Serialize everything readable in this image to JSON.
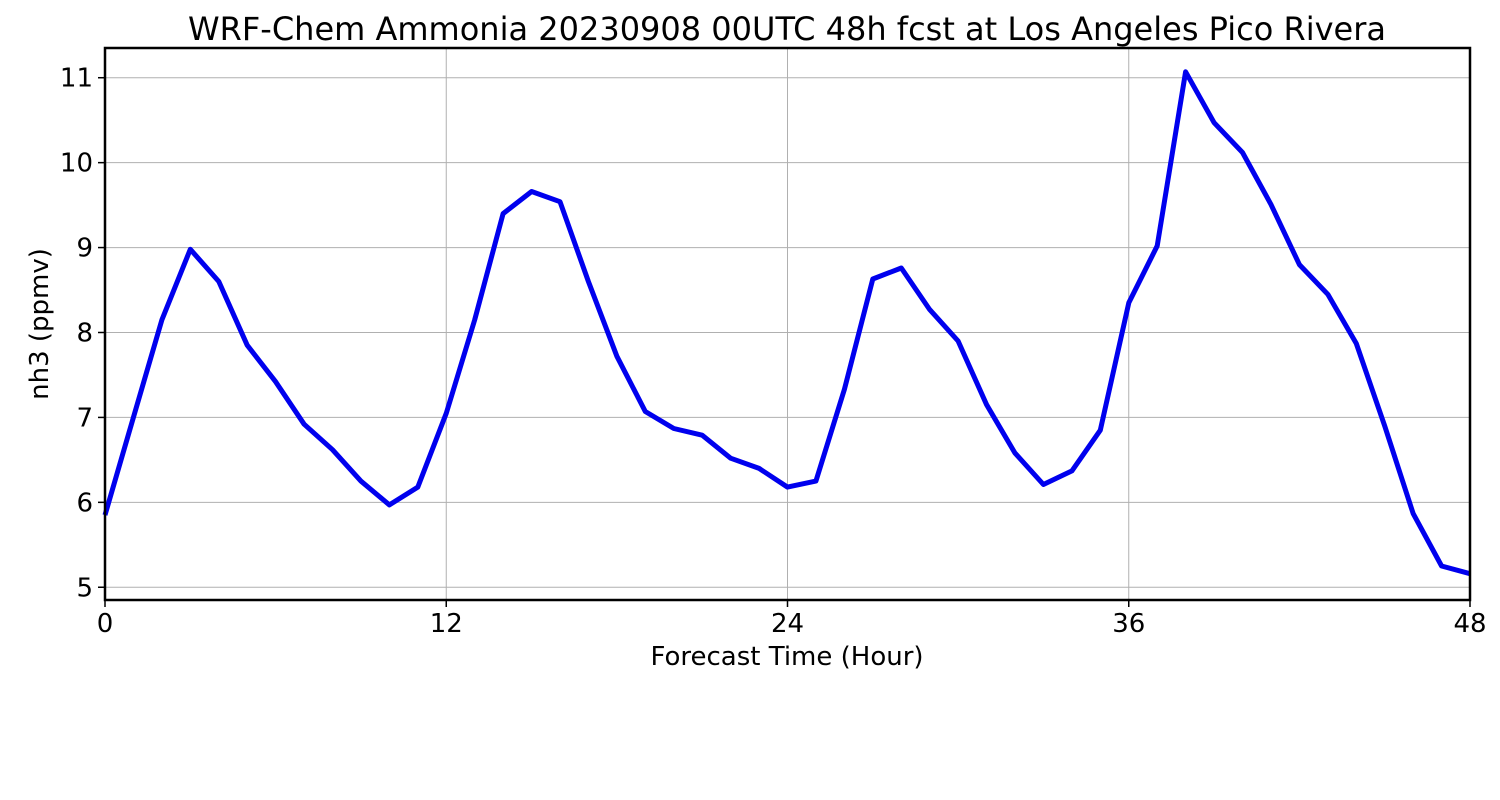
{
  "chart_data": {
    "type": "line",
    "title": "WRF-Chem Ammonia  20230908 00UTC 48h fcst at Los Angeles Pico Rivera",
    "xlabel": "Forecast Time (Hour)",
    "ylabel": "nh3  (ppmv)",
    "xlim": [
      0,
      48
    ],
    "ylim": [
      4.85,
      11.35
    ],
    "xticks": [
      0,
      12,
      24,
      36,
      48
    ],
    "yticks": [
      5,
      6,
      7,
      8,
      9,
      10,
      11
    ],
    "grid": true,
    "series_color": "#0000ee",
    "x": [
      0,
      1,
      2,
      3,
      4,
      5,
      6,
      7,
      8,
      9,
      10,
      11,
      12,
      13,
      14,
      15,
      16,
      17,
      18,
      19,
      20,
      21,
      22,
      23,
      24,
      25,
      26,
      27,
      28,
      29,
      30,
      31,
      32,
      33,
      34,
      35,
      36,
      37,
      38,
      39,
      40,
      41,
      42,
      43,
      44,
      45,
      46,
      47,
      48
    ],
    "values": [
      5.85,
      7.0,
      8.15,
      8.98,
      8.6,
      7.85,
      7.42,
      6.92,
      6.62,
      6.25,
      5.97,
      6.18,
      7.05,
      8.15,
      9.4,
      9.66,
      9.54,
      8.6,
      7.72,
      7.07,
      6.87,
      6.79,
      6.52,
      6.4,
      6.18,
      6.25,
      7.33,
      8.63,
      8.76,
      8.27,
      7.9,
      7.15,
      6.58,
      6.21,
      6.37,
      6.85,
      8.35,
      9.02,
      11.07,
      10.47,
      10.12,
      9.51,
      8.8,
      8.45,
      7.87,
      6.9,
      5.87,
      5.25,
      5.16
    ]
  }
}
